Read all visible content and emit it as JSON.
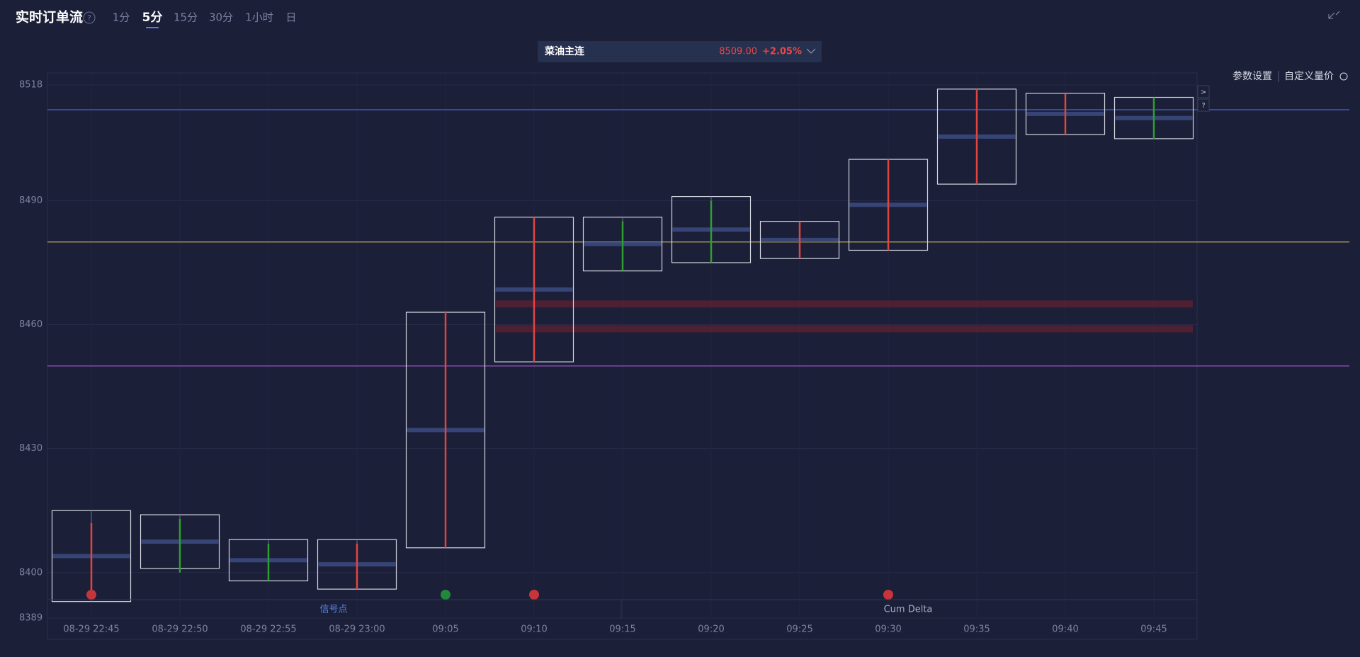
{
  "header": {
    "title": "实时订单流",
    "help": "?",
    "tabs": [
      "1分",
      "5分",
      "15分",
      "30分",
      "1小时",
      "日"
    ],
    "active_tab": 1
  },
  "ticker": {
    "name": "菜油主连",
    "price": "8509.00",
    "change": "+2.05%"
  },
  "toolbar": {
    "settings": "参数设置",
    "custom": "自定义量价",
    "side_buttons": [
      ">",
      "?"
    ]
  },
  "panels": [
    "信号点",
    "Cum Delta"
  ],
  "chart_data": {
    "type": "footprint",
    "categories": [
      "08-29 22:45",
      "08-29 22:50",
      "08-29 22:55",
      "08-29 23:00",
      "09:05",
      "09:10",
      "09:15",
      "09:20",
      "09:25",
      "09:30",
      "09:35",
      "09:40",
      "09:45"
    ],
    "open": [
      8412,
      8400,
      8398,
      8407,
      8463,
      8486,
      8473,
      8475,
      8485,
      8500,
      8517,
      8516,
      8505
    ],
    "high": [
      8415,
      8414,
      8408,
      8408,
      8463,
      8486,
      8486,
      8491,
      8485,
      8500,
      8517,
      8516,
      8515
    ],
    "low": [
      8393,
      8401,
      8398,
      8396,
      8406,
      8451,
      8473,
      8475,
      8476,
      8478,
      8494,
      8506,
      8505
    ],
    "close": [
      8394,
      8413,
      8407,
      8396,
      8406,
      8451,
      8485,
      8490,
      8476,
      8478,
      8494,
      8506,
      8515
    ],
    "up_color": "#2e9e2e",
    "down_color": "#e0463f",
    "ylim": [
      8389,
      8518
    ],
    "yticks": [
      8389,
      8400,
      8430,
      8460,
      8490,
      8518
    ],
    "grid": true,
    "levels": [
      {
        "value": 8512,
        "color": "#4667c9"
      },
      {
        "value": 8480,
        "color": "#c9b35a"
      },
      {
        "value": 8450,
        "color": "#a656c9"
      }
    ],
    "bands": [
      8465,
      8459
    ]
  }
}
